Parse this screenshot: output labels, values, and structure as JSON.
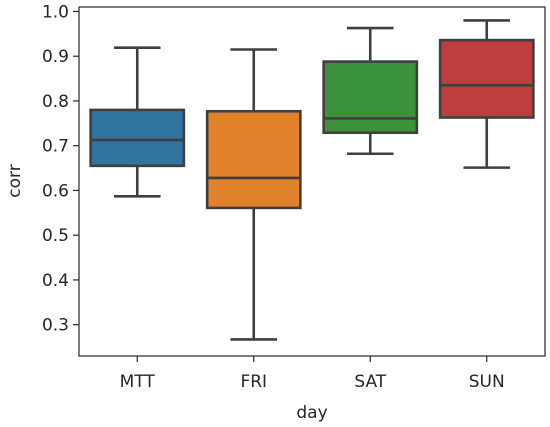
{
  "chart_data": {
    "type": "box",
    "title": "",
    "xlabel": "day",
    "ylabel": "corr",
    "ylim": [
      0.23,
      1.01
    ],
    "yticks": [
      "0.3",
      "0.4",
      "0.5",
      "0.6",
      "0.7",
      "0.8",
      "0.9",
      "1.0"
    ],
    "grid": false,
    "legend": "none",
    "categories": [
      "MTT",
      "FRI",
      "SAT",
      "SUN"
    ],
    "boxes": [
      {
        "category": "MTT",
        "whisker_low": 0.587,
        "q1": 0.655,
        "median": 0.713,
        "q3": 0.78,
        "whisker_high": 0.919,
        "color": "#3274a1"
      },
      {
        "category": "FRI",
        "whisker_low": 0.267,
        "q1": 0.561,
        "median": 0.628,
        "q3": 0.777,
        "whisker_high": 0.915,
        "color": "#e1812c"
      },
      {
        "category": "SAT",
        "whisker_low": 0.682,
        "q1": 0.729,
        "median": 0.761,
        "q3": 0.888,
        "whisker_high": 0.963,
        "color": "#3a923a"
      },
      {
        "category": "SUN",
        "whisker_low": 0.651,
        "q1": 0.763,
        "median": 0.835,
        "q3": 0.936,
        "whisker_high": 0.98,
        "color": "#c03d3e"
      }
    ]
  }
}
